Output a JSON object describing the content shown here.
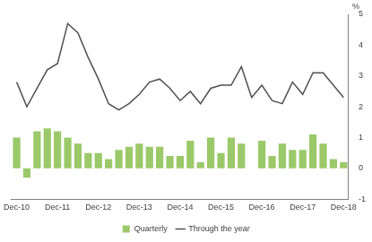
{
  "chart_data": {
    "type": "bar+line",
    "y_label": "%",
    "categories": [
      "Dec-10",
      null,
      null,
      null,
      "Dec-11",
      null,
      null,
      null,
      "Dec-12",
      null,
      null,
      null,
      "Dec-13",
      null,
      null,
      null,
      "Dec-14",
      null,
      null,
      null,
      "Dec-15",
      null,
      null,
      null,
      "Dec-16",
      null,
      null,
      null,
      "Dec-17",
      null,
      null,
      null,
      "Dec-18"
    ],
    "series": [
      {
        "name": "Quarterly",
        "type": "bar",
        "color": "#9bc96a",
        "values": [
          1.0,
          -0.3,
          1.2,
          1.3,
          1.2,
          1.0,
          0.8,
          0.5,
          0.5,
          0.3,
          0.6,
          0.7,
          0.8,
          0.7,
          0.7,
          0.4,
          0.4,
          0.9,
          0.2,
          1.0,
          0.5,
          1.0,
          0.8,
          0.0,
          0.9,
          0.4,
          0.8,
          0.6,
          0.6,
          1.1,
          0.8,
          0.3,
          0.2
        ]
      },
      {
        "name": "Through the year",
        "type": "line",
        "color": "#505050",
        "values": [
          2.8,
          2.0,
          2.6,
          3.2,
          3.4,
          4.7,
          4.4,
          3.6,
          2.9,
          2.1,
          1.9,
          2.1,
          2.4,
          2.8,
          2.9,
          2.6,
          2.2,
          2.5,
          2.1,
          2.6,
          2.7,
          2.7,
          3.3,
          2.3,
          2.7,
          2.2,
          2.1,
          2.8,
          2.4,
          3.1,
          3.1,
          2.7,
          2.3
        ]
      }
    ],
    "ylim": [
      -1,
      5
    ],
    "yticks": [
      -1,
      0,
      1,
      2,
      3,
      4,
      5
    ],
    "grid": false,
    "legend": "bottom"
  }
}
